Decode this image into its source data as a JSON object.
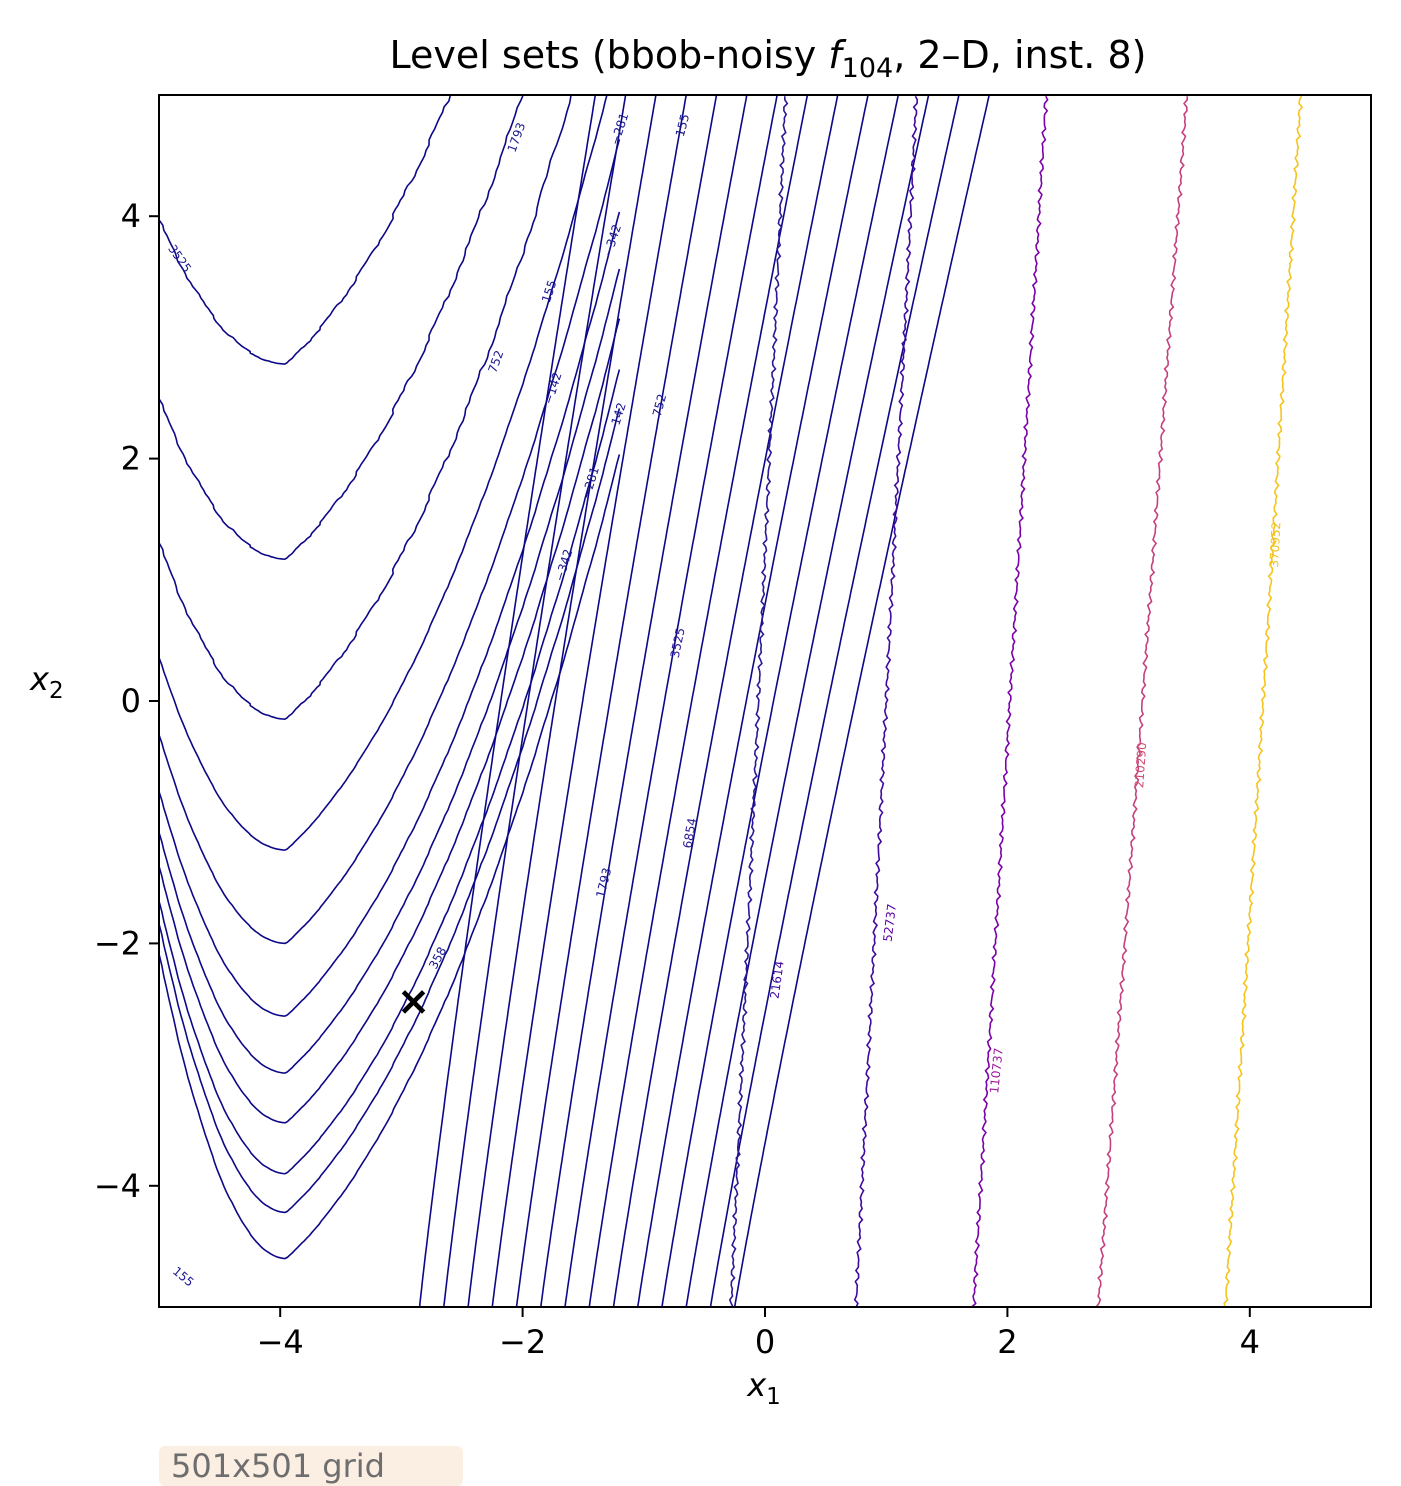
{
  "chart_data": {
    "type": "contour",
    "title_main": "Level sets (bbob-noisy ",
    "title_func": "f",
    "title_sub": "104",
    "title_tail": ", 2–D, inst. 8)",
    "xlabel": "x",
    "xlabel_sub": "1",
    "ylabel": "x",
    "ylabel_sub": "2",
    "xlim": [
      -5,
      5
    ],
    "ylim": [
      -5,
      5
    ],
    "xticks": [
      -4,
      -2,
      0,
      2,
      4
    ],
    "yticks": [
      -4,
      -2,
      0,
      2,
      4
    ],
    "xtick_labels": [
      "−4",
      "−2",
      "0",
      "2",
      "4"
    ],
    "ytick_labels": [
      "−4",
      "−2",
      "0",
      "2",
      "4"
    ],
    "grid": false,
    "optimum_marker": {
      "x": -2.9,
      "y": -2.48,
      "symbol": "×"
    },
    "contour_level_labels": [
      {
        "text": "3525",
        "x": -4.83,
        "y": 3.65,
        "rot": 55,
        "color": "#1a1890"
      },
      {
        "text": "1793",
        "x": -2.05,
        "y": 4.65,
        "rot": -70,
        "color": "#1a1890"
      },
      {
        "text": "−281",
        "x": -1.2,
        "y": 4.72,
        "rot": -72,
        "color": "#1a1890"
      },
      {
        "text": "155",
        "x": -0.68,
        "y": 4.75,
        "rot": -75,
        "color": "#1a1890"
      },
      {
        "text": "−342",
        "x": -1.26,
        "y": 3.8,
        "rot": -72,
        "color": "#1a1890"
      },
      {
        "text": "155",
        "x": -1.78,
        "y": 3.38,
        "rot": -72,
        "color": "#1a1890"
      },
      {
        "text": "752",
        "x": -2.22,
        "y": 2.8,
        "rot": -70,
        "color": "#1a1890"
      },
      {
        "text": "−142",
        "x": -1.75,
        "y": 2.58,
        "rot": -72,
        "color": "#1a1890"
      },
      {
        "text": "−142",
        "x": -1.22,
        "y": 2.33,
        "rot": -72,
        "color": "#1a1890"
      },
      {
        "text": "752",
        "x": -0.87,
        "y": 2.44,
        "rot": -75,
        "color": "#1a1890"
      },
      {
        "text": "−281",
        "x": -1.44,
        "y": 1.8,
        "rot": -73,
        "color": "#1a1890"
      },
      {
        "text": "−342",
        "x": -1.66,
        "y": 1.12,
        "rot": -73,
        "color": "#1a1890"
      },
      {
        "text": "3525",
        "x": -0.72,
        "y": 0.48,
        "rot": -78,
        "color": "#2a1895"
      },
      {
        "text": "6854",
        "x": -0.62,
        "y": -1.09,
        "rot": -80,
        "color": "#2a1895"
      },
      {
        "text": "1793",
        "x": -1.33,
        "y": -1.5,
        "rot": -76,
        "color": "#1a1890"
      },
      {
        "text": "358",
        "x": -2.7,
        "y": -2.12,
        "rot": -62,
        "color": "#1a1890"
      },
      {
        "text": "21614",
        "x": 0.1,
        "y": -2.3,
        "rot": -82,
        "color": "#3f0a9e"
      },
      {
        "text": "52737",
        "x": 1.03,
        "y": -1.83,
        "rot": -83,
        "color": "#5b00a7"
      },
      {
        "text": "110737",
        "x": 1.91,
        "y": -3.05,
        "rot": -84,
        "color": "#9a189e"
      },
      {
        "text": "210290",
        "x": 3.1,
        "y": -0.53,
        "rot": -86,
        "color": "#d04b6e"
      },
      {
        "text": "370952",
        "x": 4.21,
        "y": 1.29,
        "rot": -87,
        "color": "#f2c01f"
      },
      {
        "text": "155",
        "x": -4.8,
        "y": -4.75,
        "rot": 40,
        "color": "#1a1890"
      }
    ]
  },
  "badge": {
    "text": "501x501 grid"
  }
}
